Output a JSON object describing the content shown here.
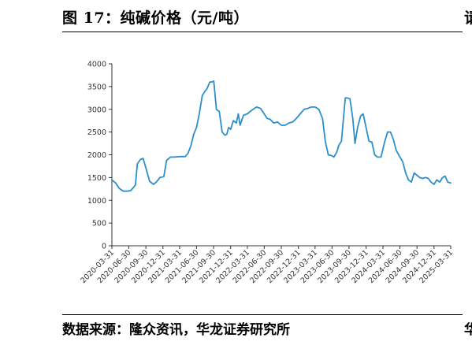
{
  "figure": {
    "title": "图 17：纯碱价格（元/吨）",
    "source": "数据来源：隆众资讯，华龙证券研究所",
    "right_edge_top": "请",
    "right_edge_bottom": "华"
  },
  "chart_data": {
    "type": "line",
    "title": "",
    "xlabel": "",
    "ylabel": "",
    "ylim": [
      0,
      4000
    ],
    "yticks": [
      0,
      500,
      1000,
      1500,
      2000,
      2500,
      3000,
      3500,
      4000
    ],
    "xticks": [
      "2020-03-31",
      "2020-06-30",
      "2020-09-30",
      "2020-12-31",
      "2021-03-31",
      "2021-06-30",
      "2021-09-30",
      "2021-12-31",
      "2022-03-31",
      "2022-06-30",
      "2022-09-30",
      "2022-12-31",
      "2023-03-31",
      "2023-06-30",
      "2023-09-30",
      "2023-12-31",
      "2024-03-31",
      "2024-06-30",
      "2024-09-30",
      "2024-12-31",
      "2025-03-31"
    ],
    "grid": false,
    "legend": "none",
    "line_color": "#2a8fcb",
    "series": [
      {
        "x": [
          "2020-03-31",
          "2020-04-20",
          "2020-05-10",
          "2020-06-01",
          "2020-06-20",
          "2020-07-10",
          "2020-07-25",
          "2020-08-05",
          "2020-08-15",
          "2020-09-01",
          "2020-09-15",
          "2020-10-01",
          "2020-10-20",
          "2020-11-10",
          "2020-11-25",
          "2020-12-15",
          "2021-01-05",
          "2021-01-20",
          "2021-02-10",
          "2021-03-01",
          "2021-03-31",
          "2021-04-30",
          "2021-05-15",
          "2021-05-31",
          "2021-06-15",
          "2021-06-30",
          "2021-07-15",
          "2021-07-31",
          "2021-08-15",
          "2021-08-25",
          "2021-09-10",
          "2021-09-20",
          "2021-10-01",
          "2021-10-15",
          "2021-10-31",
          "2021-11-15",
          "2021-11-30",
          "2021-12-10",
          "2021-12-20",
          "2021-12-31",
          "2022-01-15",
          "2022-01-31",
          "2022-02-10",
          "2022-02-20",
          "2022-03-10",
          "2022-03-31",
          "2022-04-15",
          "2022-05-01",
          "2022-05-20",
          "2022-06-10",
          "2022-06-30",
          "2022-07-15",
          "2022-08-01",
          "2022-08-20",
          "2022-09-10",
          "2022-09-30",
          "2022-10-20",
          "2022-11-10",
          "2022-11-30",
          "2022-12-20",
          "2023-01-10",
          "2023-01-31",
          "2023-02-20",
          "2023-03-10",
          "2023-03-31",
          "2023-04-20",
          "2023-05-10",
          "2023-05-25",
          "2023-06-10",
          "2023-06-30",
          "2023-07-10",
          "2023-07-25",
          "2023-08-05",
          "2023-08-20",
          "2023-08-31",
          "2023-09-10",
          "2023-09-20",
          "2023-10-05",
          "2023-10-20",
          "2023-11-01",
          "2023-11-15",
          "2023-12-01",
          "2023-12-15",
          "2023-12-31",
          "2024-01-15",
          "2024-01-31",
          "2024-02-15",
          "2024-03-01",
          "2024-03-20",
          "2024-04-10",
          "2024-04-25",
          "2024-05-10",
          "2024-05-25",
          "2024-06-10",
          "2024-06-30",
          "2024-07-15",
          "2024-07-31",
          "2024-08-15",
          "2024-08-31",
          "2024-09-15",
          "2024-09-30",
          "2024-10-15",
          "2024-10-31",
          "2024-11-15",
          "2024-11-30",
          "2024-12-15",
          "2024-12-31",
          "2025-01-15",
          "2025-01-31",
          "2025-02-15",
          "2025-03-01",
          "2025-03-15",
          "2025-03-31"
        ],
        "y": [
          1450,
          1380,
          1260,
          1200,
          1200,
          1210,
          1280,
          1340,
          1800,
          1900,
          1920,
          1700,
          1420,
          1350,
          1400,
          1500,
          1520,
          1880,
          1950,
          1950,
          1960,
          1960,
          2030,
          2200,
          2450,
          2600,
          2900,
          3300,
          3400,
          3450,
          3600,
          3600,
          3620,
          3000,
          2950,
          2500,
          2430,
          2450,
          2600,
          2560,
          2750,
          2700,
          2900,
          2650,
          2870,
          2900,
          2950,
          3000,
          3050,
          3020,
          2900,
          2800,
          2780,
          2700,
          2720,
          2650,
          2650,
          2700,
          2720,
          2800,
          2900,
          3000,
          3020,
          3050,
          3050,
          3000,
          2800,
          2300,
          2000,
          1980,
          1950,
          2050,
          2200,
          2300,
          2800,
          3250,
          3250,
          3230,
          2800,
          2250,
          2600,
          2850,
          2900,
          2600,
          2300,
          2280,
          2000,
          1950,
          1950,
          2300,
          2500,
          2500,
          2350,
          2100,
          1950,
          1850,
          1600,
          1450,
          1400,
          1600,
          1550,
          1500,
          1480,
          1500,
          1480,
          1400,
          1350,
          1450,
          1400,
          1500,
          1530,
          1400,
          1380
        ]
      }
    ]
  }
}
